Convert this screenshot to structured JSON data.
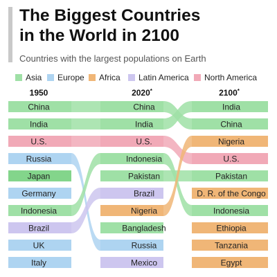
{
  "title_line1": "The Biggest Countries",
  "title_line2": "in the World in 2100",
  "subtitle": "Countries with the largest populations on Earth",
  "colors": {
    "asia_bar": "#9fe0a6",
    "asia_bar_dark": "#83d58b",
    "europe_bar": "#aed4f1",
    "africa_bar": "#f0b677",
    "latam_bar": "#cdc6ef",
    "na_bar": "#f1a9b7"
  },
  "legend": [
    {
      "label": "Asia",
      "region": "asia",
      "swatch": "#9fe0a6",
      "icon": "square"
    },
    {
      "label": "Europe",
      "region": "europe",
      "swatch": "#aed4f1",
      "icon": "square"
    },
    {
      "label": "Africa",
      "region": "africa",
      "swatch": "#f0b677",
      "icon": "square"
    },
    {
      "label": "Latin America",
      "region": "latam",
      "swatch": "#cdc6ef",
      "icon": "square"
    },
    {
      "label": "North America",
      "region": "na",
      "swatch": "#f1a9b7",
      "icon": "square"
    }
  ],
  "chart_data": {
    "type": "table",
    "columns": [
      {
        "label": "1950",
        "note": ""
      },
      {
        "label": "2020",
        "note": "*"
      },
      {
        "label": "2100",
        "note": "*"
      }
    ],
    "rankings": [
      [
        {
          "rank": 1,
          "country": "China",
          "region": "asia"
        },
        {
          "rank": 2,
          "country": "India",
          "region": "asia"
        },
        {
          "rank": 3,
          "country": "U.S.",
          "region": "na"
        },
        {
          "rank": 4,
          "country": "Russia",
          "region": "europe"
        },
        {
          "rank": 5,
          "country": "Japan",
          "region": "asia"
        },
        {
          "rank": 6,
          "country": "Germany",
          "region": "europe"
        },
        {
          "rank": 7,
          "country": "Indonesia",
          "region": "asia"
        },
        {
          "rank": 8,
          "country": "Brazil",
          "region": "latam"
        },
        {
          "rank": 9,
          "country": "UK",
          "region": "europe"
        },
        {
          "rank": 10,
          "country": "Italy",
          "region": "europe"
        }
      ],
      [
        {
          "rank": 1,
          "country": "China",
          "region": "asia"
        },
        {
          "rank": 2,
          "country": "India",
          "region": "asia"
        },
        {
          "rank": 3,
          "country": "U.S.",
          "region": "na"
        },
        {
          "rank": 4,
          "country": "Indonesia",
          "region": "asia"
        },
        {
          "rank": 5,
          "country": "Pakistan",
          "region": "asia"
        },
        {
          "rank": 6,
          "country": "Brazil",
          "region": "latam"
        },
        {
          "rank": 7,
          "country": "Nigeria",
          "region": "africa"
        },
        {
          "rank": 8,
          "country": "Bangladesh",
          "region": "asia"
        },
        {
          "rank": 9,
          "country": "Russia",
          "region": "europe"
        },
        {
          "rank": 10,
          "country": "Mexico",
          "region": "latam"
        }
      ],
      [
        {
          "rank": 1,
          "country": "India",
          "region": "asia"
        },
        {
          "rank": 2,
          "country": "China",
          "region": "asia"
        },
        {
          "rank": 3,
          "country": "Nigeria",
          "region": "africa"
        },
        {
          "rank": 4,
          "country": "U.S.",
          "region": "na"
        },
        {
          "rank": 5,
          "country": "Pakistan",
          "region": "asia"
        },
        {
          "rank": 6,
          "country": "D. R. of the Congo",
          "region": "africa"
        },
        {
          "rank": 7,
          "country": "Indonesia",
          "region": "asia"
        },
        {
          "rank": 8,
          "country": "Ethiopia",
          "region": "africa"
        },
        {
          "rank": 9,
          "country": "Tanzania",
          "region": "africa"
        },
        {
          "rank": 10,
          "country": "Egypt",
          "region": "africa"
        }
      ]
    ]
  }
}
